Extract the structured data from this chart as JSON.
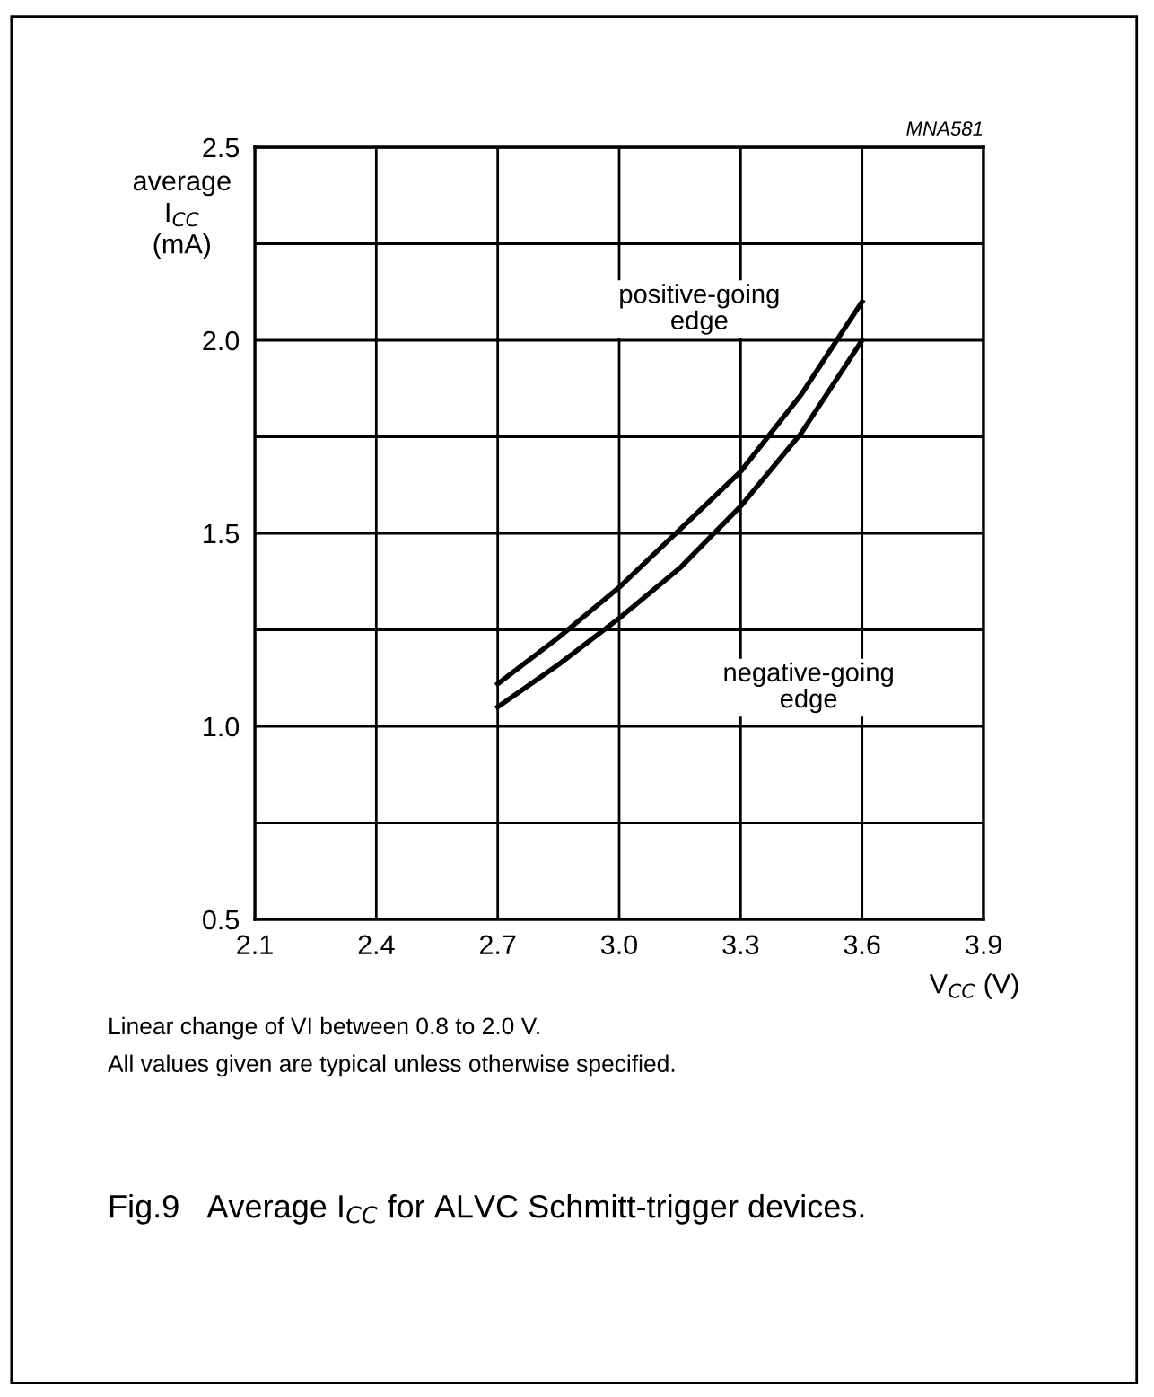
{
  "chart_data": {
    "type": "line",
    "title": "Fig.9   Average I$_{CC}$ for ALVC Schmitt-trigger devices.",
    "xlabel": "V$_{CC}$ (V)",
    "ylabel": "average\nI$_{CC}$\n(mA)",
    "x": [
      2.7,
      2.85,
      3.0,
      3.15,
      3.3,
      3.45,
      3.6
    ],
    "series": [
      {
        "color": "#000000",
        "values": [
          1.11,
          1.23,
          1.36,
          1.51,
          1.66,
          1.86,
          2.1
        ]
      },
      {
        "color": "#000000",
        "values": [
          1.05,
          1.16,
          1.28,
          1.41,
          1.57,
          1.76,
          2.0
        ]
      }
    ],
    "annotations": [
      "positive-going\nedge",
      "negative-going\nedge",
      "MNA581",
      "Linear change of VI between 0.8 to 2.0 V.\nAll values given are typical unless otherwise specified."
    ],
    "xlim": [
      2.1,
      3.9
    ],
    "xticks": [
      2.1,
      2.4,
      2.7,
      {
        "value": 3,
        "label": "3.0"
      },
      3.3,
      3.6,
      3.9
    ],
    "ylim": [
      0.5,
      2.5
    ],
    "yticks": [
      0.5,
      {
        "value": 0.75,
        "label": null
      },
      {
        "value": 1,
        "label": "1.0"
      },
      {
        "value": 1.25,
        "label": null
      },
      1.5,
      {
        "value": 1.75,
        "label": null
      },
      {
        "value": 2,
        "label": "2.0"
      },
      {
        "value": 2.25,
        "label": null
      },
      2.5
    ],
    "grid": true,
    "legend": false,
    "line_style": "solid",
    "marker": "none"
  }
}
